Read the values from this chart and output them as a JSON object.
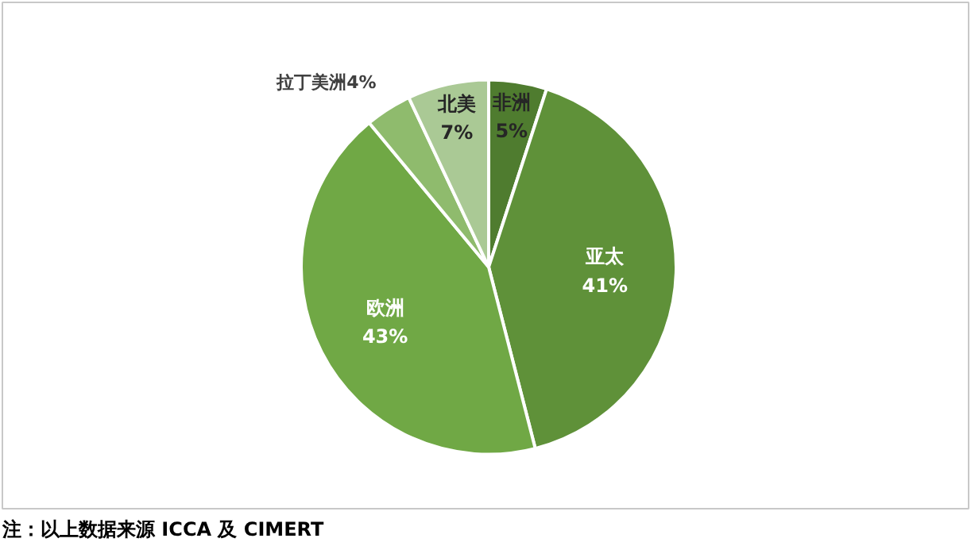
{
  "chart_data": {
    "type": "pie",
    "categories": [
      "非洲",
      "亚太",
      "欧洲",
      "拉丁美洲",
      "北美"
    ],
    "values": [
      5,
      41,
      43,
      4,
      7
    ],
    "value_labels": [
      "5%",
      "41%",
      "43%",
      "4%",
      "7%"
    ],
    "colors": [
      "#4f7c2f",
      "#5f9139",
      "#70a845",
      "#8fbb6d",
      "#aac995"
    ],
    "annotations": [
      "注：以上数据来源 ICCA 及 CIMERT"
    ]
  }
}
